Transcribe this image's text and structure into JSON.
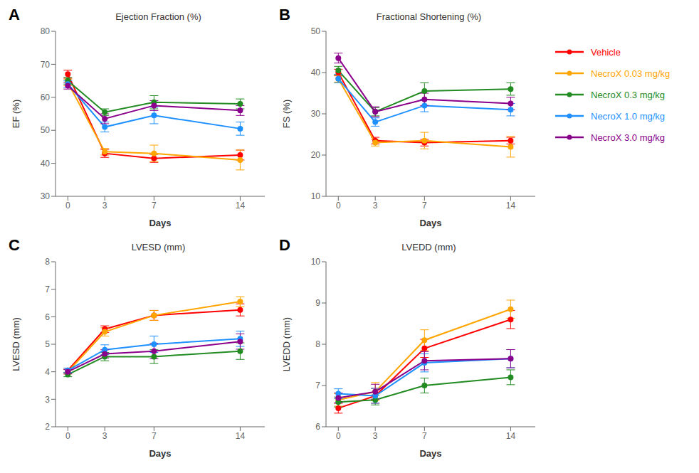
{
  "chart_data": [
    {
      "type": "line",
      "title": "Ejection Fraction (%)",
      "annotations": [
        "A"
      ],
      "xlabel": "Days",
      "ylabel": "EF (%)",
      "x": [
        0,
        3,
        7,
        14
      ],
      "xlim": [
        -1,
        16
      ],
      "xticks": [
        0,
        3,
        7,
        14
      ],
      "ylim": [
        30,
        80
      ],
      "yticks": [
        30,
        40,
        50,
        60,
        70,
        80
      ],
      "grid": false,
      "marker": "circle",
      "series": [
        {
          "name": "Vehicle",
          "color": "#FF0000",
          "values": [
            67.0,
            43.0,
            41.5,
            42.5
          ],
          "errors": [
            1.2,
            1.2,
            1.2,
            1.5
          ]
        },
        {
          "name": "NecroX 0.03 mg/kg",
          "color": "#FFA500",
          "values": [
            64.5,
            43.5,
            43.0,
            41.0
          ],
          "errors": [
            1.0,
            1.0,
            2.5,
            3.0
          ]
        },
        {
          "name": "NecroX 0.3 mg/kg",
          "color": "#228B22",
          "values": [
            65.0,
            55.5,
            58.5,
            58.0
          ],
          "errors": [
            1.0,
            1.0,
            2.0,
            1.5
          ]
        },
        {
          "name": "NecroX 1.0 mg/kg",
          "color": "#1E90FF",
          "values": [
            64.0,
            51.0,
            54.5,
            50.5
          ],
          "errors": [
            1.0,
            1.5,
            2.5,
            2.0
          ]
        },
        {
          "name": "NecroX 3.0 mg/kg",
          "color": "#8B008B",
          "values": [
            63.5,
            53.5,
            57.5,
            56.0
          ],
          "errors": [
            1.0,
            1.5,
            1.5,
            1.5
          ]
        }
      ]
    },
    {
      "type": "line",
      "title": "Fractional Shortening (%)",
      "annotations": [
        "B"
      ],
      "xlabel": "Days",
      "ylabel": "FS (%)",
      "x": [
        0,
        3,
        7,
        14
      ],
      "xlim": [
        -1,
        16
      ],
      "xticks": [
        0,
        3,
        7,
        14
      ],
      "ylim": [
        10,
        50
      ],
      "yticks": [
        10,
        20,
        30,
        40,
        50
      ],
      "grid": false,
      "marker": "circle",
      "legend": "right",
      "series": [
        {
          "name": "Vehicle",
          "color": "#FF0000",
          "values": [
            40.0,
            23.5,
            23.0,
            23.5
          ],
          "errors": [
            0.8,
            0.8,
            0.8,
            0.8
          ]
        },
        {
          "name": "NecroX 0.03 mg/kg",
          "color": "#FFA500",
          "values": [
            38.5,
            23.0,
            23.5,
            22.0
          ],
          "errors": [
            0.8,
            0.8,
            2.0,
            2.5
          ]
        },
        {
          "name": "NecroX 0.3 mg/kg",
          "color": "#228B22",
          "values": [
            40.5,
            30.5,
            35.5,
            36.0
          ],
          "errors": [
            1.0,
            1.0,
            2.0,
            1.5
          ]
        },
        {
          "name": "NecroX 1.0 mg/kg",
          "color": "#1E90FF",
          "values": [
            38.5,
            28.0,
            32.0,
            31.0
          ],
          "errors": [
            1.0,
            1.0,
            1.5,
            1.5
          ]
        },
        {
          "name": "NecroX 3.0 mg/kg",
          "color": "#8B008B",
          "values": [
            43.5,
            30.5,
            33.5,
            32.5
          ],
          "errors": [
            1.2,
            1.2,
            1.5,
            1.5
          ]
        }
      ]
    },
    {
      "type": "line",
      "title": "LVESD (mm)",
      "annotations": [
        "C"
      ],
      "xlabel": "Days",
      "ylabel": "LVESD (mm)",
      "x": [
        0,
        3,
        7,
        14
      ],
      "xlim": [
        -1,
        16
      ],
      "xticks": [
        0,
        3,
        7,
        14
      ],
      "ylim": [
        2,
        8
      ],
      "yticks": [
        2,
        3,
        4,
        5,
        6,
        7,
        8
      ],
      "grid": false,
      "marker": "circle",
      "series": [
        {
          "name": "Vehicle",
          "color": "#FF0000",
          "values": [
            4.05,
            5.55,
            6.05,
            6.25
          ],
          "errors": [
            0.08,
            0.12,
            0.18,
            0.22
          ]
        },
        {
          "name": "NecroX 0.03 mg/kg",
          "color": "#FFA500",
          "values": [
            4.0,
            5.45,
            6.05,
            6.55
          ],
          "errors": [
            0.08,
            0.15,
            0.18,
            0.18
          ]
        },
        {
          "name": "NecroX 0.3 mg/kg",
          "color": "#228B22",
          "values": [
            3.9,
            4.55,
            4.55,
            4.75
          ],
          "errors": [
            0.08,
            0.15,
            0.25,
            0.3
          ]
        },
        {
          "name": "NecroX 1.0 mg/kg",
          "color": "#1E90FF",
          "values": [
            4.05,
            4.8,
            5.0,
            5.2
          ],
          "errors": [
            0.08,
            0.18,
            0.3,
            0.28
          ]
        },
        {
          "name": "NecroX 3.0 mg/kg",
          "color": "#8B008B",
          "values": [
            4.0,
            4.65,
            4.75,
            5.1
          ],
          "errors": [
            0.08,
            0.15,
            0.28,
            0.28
          ]
        }
      ]
    },
    {
      "type": "line",
      "title": "LVEDD (mm)",
      "annotations": [
        "D"
      ],
      "xlabel": "Days",
      "ylabel": "LVEDD (mm)",
      "x": [
        0,
        3,
        7,
        14
      ],
      "xlim": [
        -1,
        16
      ],
      "xticks": [
        0,
        3,
        7,
        14
      ],
      "ylim": [
        6,
        10
      ],
      "yticks": [
        6,
        7,
        8,
        9,
        10
      ],
      "grid": false,
      "marker": "circle",
      "series": [
        {
          "name": "Vehicle",
          "color": "#FF0000",
          "values": [
            6.45,
            6.75,
            7.9,
            8.6
          ],
          "errors": [
            0.12,
            0.18,
            0.22,
            0.22
          ]
        },
        {
          "name": "NecroX 0.03 mg/kg",
          "color": "#FFA500",
          "values": [
            6.65,
            6.85,
            8.1,
            8.85
          ],
          "errors": [
            0.15,
            0.22,
            0.25,
            0.22
          ]
        },
        {
          "name": "NecroX 0.3 mg/kg",
          "color": "#228B22",
          "values": [
            6.6,
            6.65,
            7.0,
            7.2
          ],
          "errors": [
            0.12,
            0.12,
            0.18,
            0.18
          ]
        },
        {
          "name": "NecroX 1.0 mg/kg",
          "color": "#1E90FF",
          "values": [
            6.8,
            6.75,
            7.55,
            7.65
          ],
          "errors": [
            0.12,
            0.18,
            0.22,
            0.22
          ]
        },
        {
          "name": "NecroX 3.0 mg/kg",
          "color": "#8B008B",
          "values": [
            6.7,
            6.85,
            7.6,
            7.65
          ],
          "errors": [
            0.12,
            0.18,
            0.22,
            0.22
          ]
        }
      ]
    }
  ]
}
